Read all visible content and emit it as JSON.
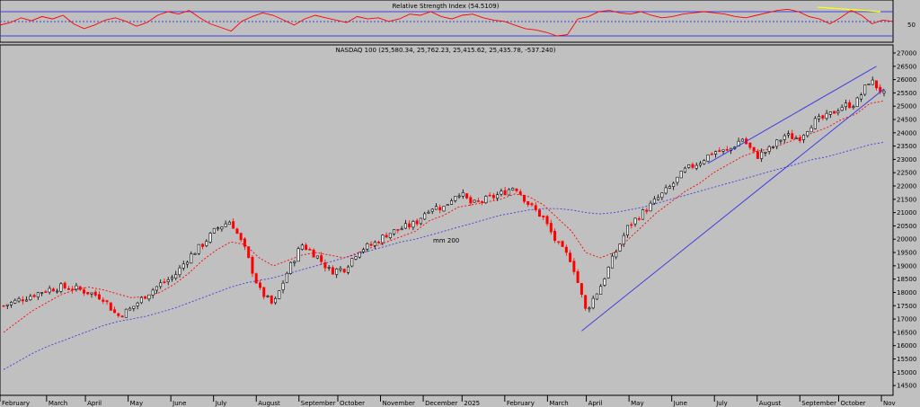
{
  "chart_data": [
    {
      "type": "line",
      "title": "Relative Strength Index (54.5109)",
      "ytick": "50",
      "ylim": [
        20,
        90
      ],
      "levels": [
        70,
        50,
        30
      ],
      "series": [
        {
          "color": "#ff0000",
          "values": [
            48,
            52,
            60,
            55,
            62,
            58,
            64,
            50,
            42,
            48,
            56,
            60,
            54,
            46,
            52,
            64,
            70,
            66,
            72,
            60,
            50,
            44,
            38,
            54,
            62,
            68,
            64,
            56,
            48,
            58,
            64,
            60,
            56,
            52,
            62,
            58,
            60,
            54,
            58,
            66,
            64,
            70,
            62,
            58,
            64,
            66,
            60,
            56,
            54,
            48,
            42,
            40,
            36,
            30,
            32,
            58,
            62,
            70,
            72,
            68,
            66,
            70,
            64,
            60,
            62,
            66,
            68,
            70,
            68,
            66,
            62,
            60,
            64,
            68,
            72,
            74,
            70,
            62,
            58,
            50,
            60,
            72,
            64,
            50,
            56,
            54
          ]
        }
      ],
      "annotation": {
        "label": "divergence",
        "color": "#ffff00"
      }
    },
    {
      "type": "candlestick",
      "title": "NASDAQ 100 (25,580.34, 25,762.23, 25,415.62, 25,435.78, -537.240)",
      "ylim": [
        14200,
        27100
      ],
      "yticks": [
        14500,
        15000,
        15500,
        16000,
        16500,
        17000,
        17500,
        18000,
        18500,
        19000,
        19500,
        20000,
        20500,
        21000,
        21500,
        22000,
        22500,
        23000,
        23500,
        24000,
        24500,
        25000,
        25500,
        26000,
        26500,
        27000
      ],
      "month_labels": [
        "February",
        "March",
        "April",
        "May",
        "June",
        "July",
        "August",
        "September",
        "October",
        "November",
        "December",
        "2025",
        "February",
        "March",
        "April",
        "May",
        "June",
        "July",
        "August",
        "September",
        "October",
        "Nov"
      ],
      "month_index": [
        0,
        12,
        22,
        33,
        44,
        55,
        66,
        77,
        87,
        98,
        109,
        119,
        130,
        141,
        151,
        162,
        173,
        184,
        195,
        206,
        216,
        227
      ],
      "close": [
        17500,
        17700,
        17900,
        18100,
        18200,
        18150,
        18000,
        17800,
        17100,
        17400,
        17900,
        18300,
        18600,
        19300,
        19800,
        20400,
        20700,
        19600,
        18100,
        17500,
        18800,
        19800,
        19400,
        18800,
        18900,
        19600,
        19800,
        20200,
        20400,
        20600,
        21200,
        21200,
        21800,
        21300,
        21500,
        21700,
        22000,
        21300,
        20800,
        19800,
        19200,
        17300,
        18200,
        19400,
        20500,
        21000,
        21500,
        22000,
        22600,
        22900,
        23300,
        23300,
        23800,
        23100,
        23400,
        23900,
        23800,
        24400,
        24600,
        25000,
        25100,
        26000,
        25440
      ],
      "series": [
        {
          "name": "",
          "color": "#ff0000",
          "style": "dotted",
          "values": [
            16500,
            16900,
            17300,
            17600,
            17900,
            18100,
            18200,
            18100,
            17950,
            17800,
            17850,
            18000,
            18300,
            18700,
            19200,
            19600,
            19900,
            19800,
            19300,
            19000,
            19200,
            19400,
            19500,
            19400,
            19300,
            19500,
            19700,
            19900,
            20100,
            20300,
            20700,
            20900,
            21200,
            21300,
            21400,
            21500,
            21700,
            21600,
            21300,
            20800,
            20300,
            19500,
            19300,
            19500,
            20000,
            20500,
            21000,
            21400,
            21800,
            22100,
            22500,
            22800,
            23100,
            23300,
            23400,
            23600,
            23800,
            24000,
            24200,
            24500,
            24700,
            25100,
            25200
          ]
        },
        {
          "name": "mm 200",
          "color": "#3f3fe0",
          "style": "dotted",
          "values": [
            15100,
            15400,
            15700,
            15950,
            16150,
            16350,
            16550,
            16750,
            16900,
            17000,
            17100,
            17250,
            17400,
            17600,
            17800,
            18000,
            18200,
            18350,
            18450,
            18550,
            18700,
            18850,
            19000,
            19150,
            19300,
            19450,
            19600,
            19750,
            19900,
            20000,
            20150,
            20300,
            20450,
            20600,
            20750,
            20900,
            21000,
            21100,
            21150,
            21150,
            21100,
            21000,
            20950,
            21000,
            21100,
            21200,
            21350,
            21500,
            21650,
            21800,
            21950,
            22100,
            22250,
            22400,
            22550,
            22700,
            22850,
            23000,
            23100,
            23250,
            23400,
            23550,
            23650
          ]
        }
      ],
      "trendlines": [
        {
          "from": [
            151,
            16550
          ],
          "to": [
            230,
            25650
          ]
        },
        {
          "from": [
            184,
            22850
          ],
          "to": [
            228,
            26500
          ]
        }
      ]
    }
  ]
}
